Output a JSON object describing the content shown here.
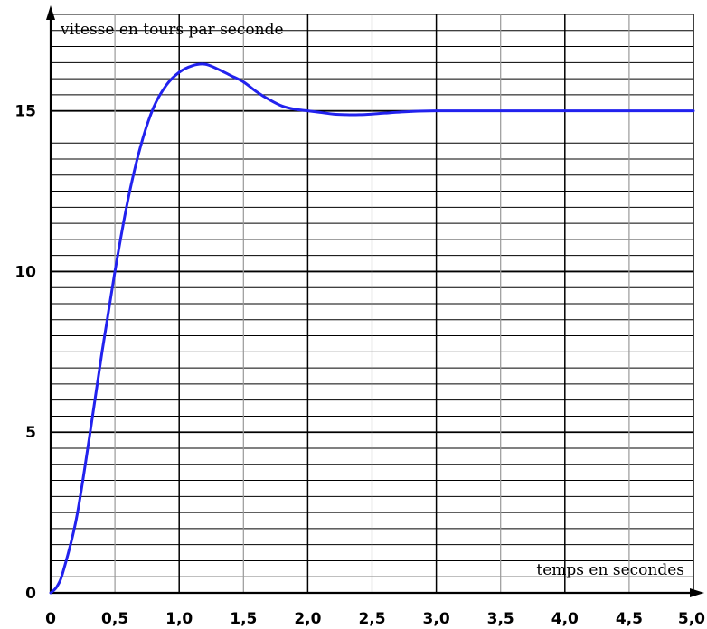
{
  "chart_data": {
    "type": "line",
    "xlabel": "temps en secondes",
    "ylabel": "vitesse en tours par seconde",
    "xlim": [
      0,
      5.0
    ],
    "ylim": [
      0,
      18
    ],
    "grid": true,
    "x_ticks": [
      {
        "value": 0,
        "label": "0"
      },
      {
        "value": 0.5,
        "label": "0,5"
      },
      {
        "value": 1.0,
        "label": "1,0"
      },
      {
        "value": 1.5,
        "label": "1,5"
      },
      {
        "value": 2.0,
        "label": "2,0"
      },
      {
        "value": 2.5,
        "label": "2,5"
      },
      {
        "value": 3.0,
        "label": "3,0"
      },
      {
        "value": 3.5,
        "label": "3,5"
      },
      {
        "value": 4.0,
        "label": "4,0"
      },
      {
        "value": 4.5,
        "label": "4,5"
      },
      {
        "value": 5.0,
        "label": "5,0"
      }
    ],
    "y_ticks": [
      {
        "value": 0,
        "label": "0"
      },
      {
        "value": 5,
        "label": "5"
      },
      {
        "value": 10,
        "label": "10"
      },
      {
        "value": 15,
        "label": "15"
      }
    ],
    "series": [
      {
        "color": "#2222ee",
        "x": [
          0,
          0.05,
          0.1,
          0.2,
          0.3,
          0.4,
          0.5,
          0.6,
          0.7,
          0.8,
          0.9,
          1.0,
          1.1,
          1.2,
          1.3,
          1.4,
          1.5,
          1.6,
          1.7,
          1.8,
          1.9,
          2.0,
          2.1,
          2.2,
          2.3,
          2.4,
          2.5,
          2.6,
          2.8,
          3.0,
          3.5,
          4.0,
          4.5,
          5.0
        ],
        "y": [
          0,
          0.2,
          0.7,
          2.3,
          4.8,
          7.5,
          10.0,
          12.2,
          13.9,
          15.1,
          15.8,
          16.2,
          16.4,
          16.45,
          16.3,
          16.1,
          15.9,
          15.6,
          15.35,
          15.15,
          15.05,
          15.0,
          14.95,
          14.9,
          14.88,
          14.88,
          14.9,
          14.93,
          14.98,
          15.0,
          15.0,
          15.0,
          15.0,
          15.0
        ]
      }
    ]
  }
}
